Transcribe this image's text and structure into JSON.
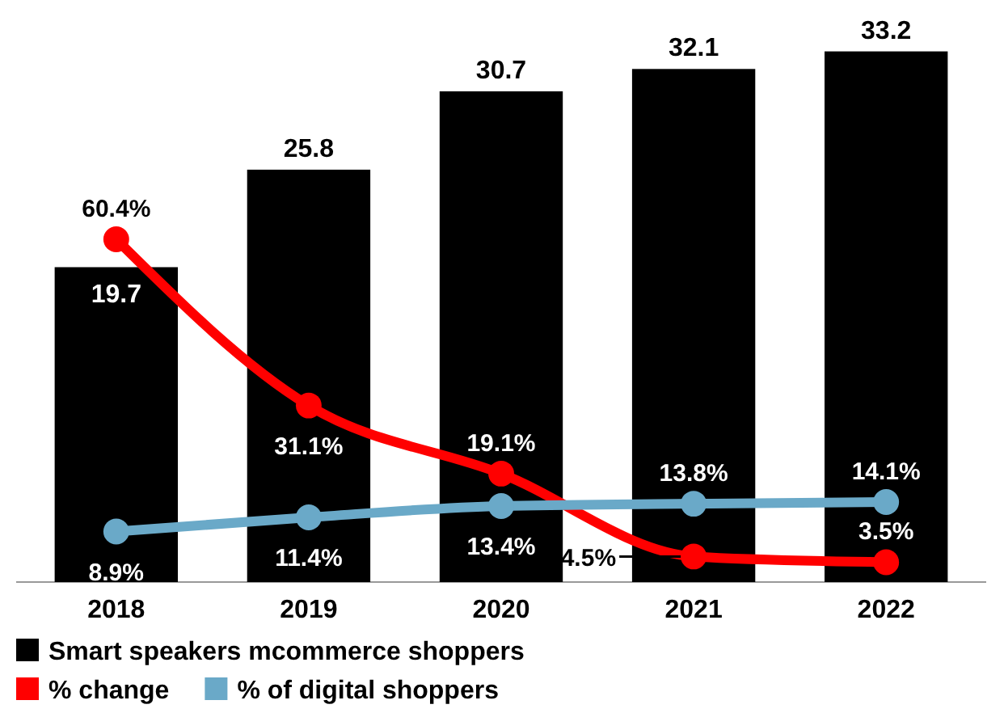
{
  "chart_data": {
    "type": "bar",
    "categories": [
      "2018",
      "2019",
      "2020",
      "2021",
      "2022"
    ],
    "series": [
      {
        "name": "Smart speakers mcommerce shoppers",
        "color": "#000000",
        "values": [
          19.7,
          25.8,
          30.7,
          32.1,
          33.2
        ]
      },
      {
        "name": "% change",
        "type": "line",
        "axis": "y2",
        "color": "#ff0000",
        "values": [
          60.4,
          31.1,
          19.1,
          4.5,
          3.5
        ],
        "value_labels": [
          "60.4%",
          "31.1%",
          "19.1%",
          "4.5%",
          "3.5%"
        ]
      },
      {
        "name": "% of digital shoppers",
        "type": "line",
        "axis": "y2",
        "color": "#6aa9c8",
        "values": [
          8.9,
          11.4,
          13.4,
          13.8,
          14.1
        ],
        "value_labels": [
          "8.9%",
          "11.4%",
          "13.4%",
          "13.8%",
          "14.1%"
        ]
      }
    ],
    "data_labels": true,
    "tick_labels": "x",
    "marker": "circle",
    "legend": "bottom"
  }
}
